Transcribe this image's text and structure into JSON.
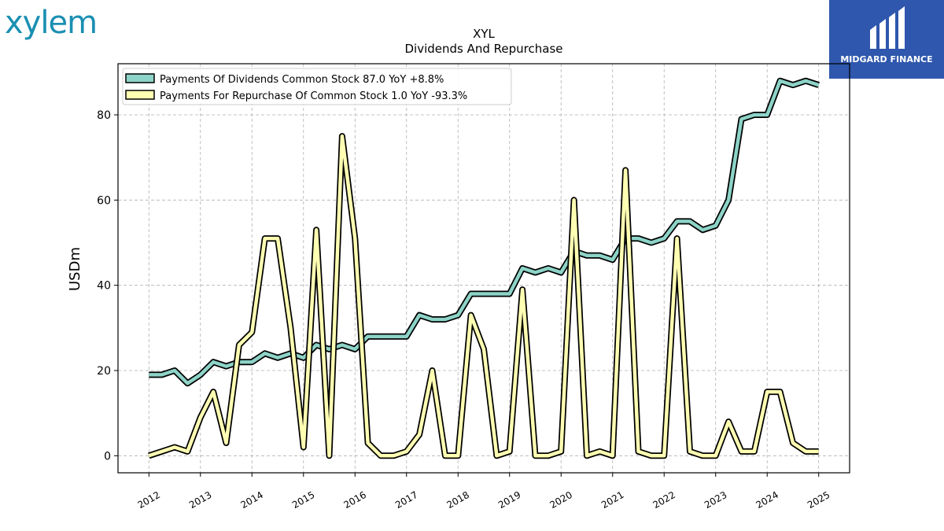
{
  "brand": {
    "logo_text": "xylem",
    "badge_text": "MIDGARD FINANCE",
    "badge_color": "#2f57ad",
    "logo_color": "#1a8fb3"
  },
  "chart_data": {
    "type": "line",
    "title": "XYL",
    "subtitle": "Dividends And Repurchase",
    "ylabel": "USDm",
    "ylim": [
      -4,
      92
    ],
    "yticks": [
      0,
      20,
      40,
      60,
      80
    ],
    "xlim": [
      2011.4,
      2025.6
    ],
    "xticks": [
      "2012",
      "2013",
      "2014",
      "2015",
      "2016",
      "2017",
      "2018",
      "2019",
      "2020",
      "2021",
      "2022",
      "2023",
      "2024",
      "2025"
    ],
    "grid": true,
    "legend_position": "top-left",
    "series": [
      {
        "name": "Payments Of Dividends Common Stock",
        "legend_label": "Payments Of Dividends Common Stock  87.0 YoY +8.8%",
        "color": "#8dd3c7",
        "points": [
          [
            2012.0,
            19
          ],
          [
            2012.25,
            19
          ],
          [
            2012.5,
            20
          ],
          [
            2012.75,
            17
          ],
          [
            2013.0,
            19
          ],
          [
            2013.25,
            22
          ],
          [
            2013.5,
            21
          ],
          [
            2013.75,
            22
          ],
          [
            2014.0,
            22
          ],
          [
            2014.25,
            24
          ],
          [
            2014.5,
            23
          ],
          [
            2014.75,
            24
          ],
          [
            2015.0,
            23
          ],
          [
            2015.25,
            26
          ],
          [
            2015.5,
            25
          ],
          [
            2015.75,
            26
          ],
          [
            2016.0,
            25
          ],
          [
            2016.25,
            28
          ],
          [
            2016.5,
            28
          ],
          [
            2016.75,
            28
          ],
          [
            2017.0,
            28
          ],
          [
            2017.25,
            33
          ],
          [
            2017.5,
            32
          ],
          [
            2017.75,
            32
          ],
          [
            2018.0,
            33
          ],
          [
            2018.25,
            38
          ],
          [
            2018.5,
            38
          ],
          [
            2018.75,
            38
          ],
          [
            2019.0,
            38
          ],
          [
            2019.25,
            44
          ],
          [
            2019.5,
            43
          ],
          [
            2019.75,
            44
          ],
          [
            2020.0,
            43
          ],
          [
            2020.25,
            48
          ],
          [
            2020.5,
            47
          ],
          [
            2020.75,
            47
          ],
          [
            2021.0,
            46
          ],
          [
            2021.25,
            51
          ],
          [
            2021.5,
            51
          ],
          [
            2021.75,
            50
          ],
          [
            2022.0,
            51
          ],
          [
            2022.25,
            55
          ],
          [
            2022.5,
            55
          ],
          [
            2022.75,
            53
          ],
          [
            2023.0,
            54
          ],
          [
            2023.25,
            60
          ],
          [
            2023.5,
            79
          ],
          [
            2023.75,
            80
          ],
          [
            2024.0,
            80
          ],
          [
            2024.25,
            88
          ],
          [
            2024.5,
            87
          ],
          [
            2024.75,
            88
          ],
          [
            2025.0,
            87
          ]
        ]
      },
      {
        "name": "Payments For Repurchase Of Common Stock",
        "legend_label": "Payments For Repurchase Of Common Stock  1.0 YoY -93.3%",
        "color": "#ffffb3",
        "points": [
          [
            2012.0,
            0
          ],
          [
            2012.25,
            1
          ],
          [
            2012.5,
            2
          ],
          [
            2012.75,
            1
          ],
          [
            2013.0,
            9
          ],
          [
            2013.25,
            15
          ],
          [
            2013.5,
            3
          ],
          [
            2013.75,
            26
          ],
          [
            2014.0,
            29
          ],
          [
            2014.25,
            51
          ],
          [
            2014.5,
            51
          ],
          [
            2014.75,
            30
          ],
          [
            2015.0,
            2
          ],
          [
            2015.25,
            53
          ],
          [
            2015.5,
            0
          ],
          [
            2015.75,
            75
          ],
          [
            2016.0,
            51
          ],
          [
            2016.25,
            3
          ],
          [
            2016.5,
            0
          ],
          [
            2016.75,
            0
          ],
          [
            2017.0,
            1
          ],
          [
            2017.25,
            5
          ],
          [
            2017.5,
            20
          ],
          [
            2017.75,
            0
          ],
          [
            2018.0,
            0
          ],
          [
            2018.25,
            33
          ],
          [
            2018.5,
            25
          ],
          [
            2018.75,
            0
          ],
          [
            2019.0,
            1
          ],
          [
            2019.25,
            39
          ],
          [
            2019.5,
            0
          ],
          [
            2019.75,
            0
          ],
          [
            2020.0,
            1
          ],
          [
            2020.25,
            60
          ],
          [
            2020.5,
            0
          ],
          [
            2020.75,
            1
          ],
          [
            2021.0,
            0
          ],
          [
            2021.25,
            67
          ],
          [
            2021.5,
            1
          ],
          [
            2021.75,
            0
          ],
          [
            2022.0,
            0
          ],
          [
            2022.25,
            51
          ],
          [
            2022.5,
            1
          ],
          [
            2022.75,
            0
          ],
          [
            2023.0,
            0
          ],
          [
            2023.25,
            8
          ],
          [
            2023.5,
            1
          ],
          [
            2023.75,
            1
          ],
          [
            2024.0,
            15
          ],
          [
            2024.25,
            15
          ],
          [
            2024.5,
            3
          ],
          [
            2024.75,
            1
          ],
          [
            2025.0,
            1
          ]
        ]
      }
    ]
  }
}
